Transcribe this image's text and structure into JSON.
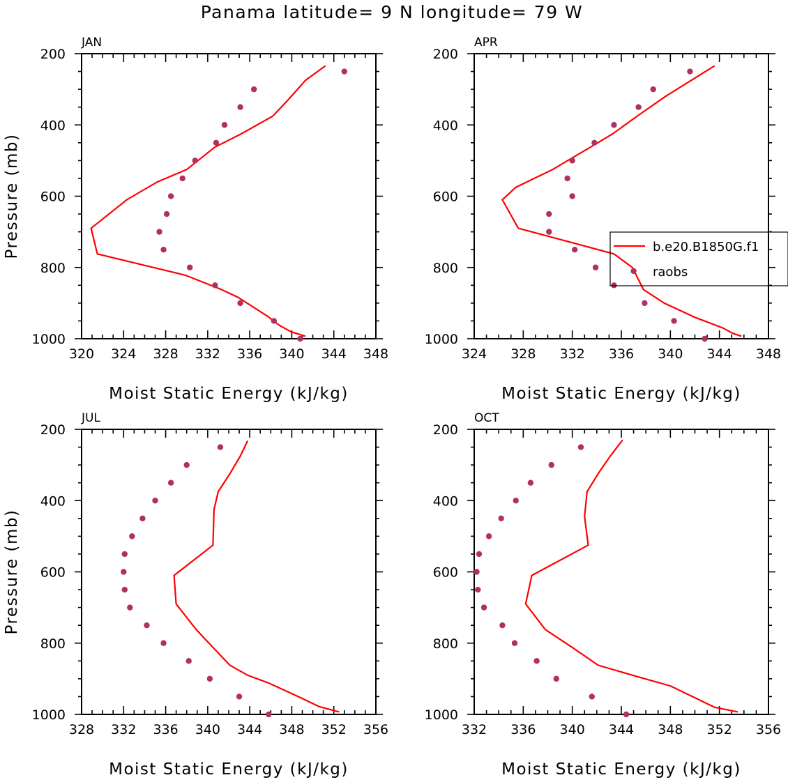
{
  "title": "Panama  latitude= 9 N longitude= 79 W",
  "colors": {
    "model": "#ff0000",
    "obs": "#b03060",
    "axis": "#000000"
  },
  "legend": {
    "model_label": "b.e20.B1850G.f1",
    "obs_label": "raobs",
    "panel": "APR"
  },
  "chart_data": [
    {
      "type": "line",
      "panel": "JAN",
      "xlabel": "Moist Static Energy (kJ/kg)",
      "ylabel": "Pressure (mb)",
      "xlim": [
        320,
        348
      ],
      "ylim": [
        200,
        1000
      ],
      "xticks": [
        320,
        324,
        328,
        332,
        336,
        340,
        344,
        348
      ],
      "yticks": [
        200,
        400,
        600,
        800,
        1000
      ],
      "series": [
        {
          "name": "b.e20.B1850G.f1",
          "style": "line",
          "points": [
            [
              343.2,
              234
            ],
            [
              341.3,
              275
            ],
            [
              339.8,
              325
            ],
            [
              338.2,
              375
            ],
            [
              335.2,
              425
            ],
            [
              332.7,
              462
            ],
            [
              330.0,
              525
            ],
            [
              327.2,
              560
            ],
            [
              324.3,
              610
            ],
            [
              320.9,
              690
            ],
            [
              321.5,
              762
            ],
            [
              329.9,
              822
            ],
            [
              333.3,
              862
            ],
            [
              334.9,
              884
            ],
            [
              337.7,
              937
            ],
            [
              338.8,
              962
            ],
            [
              339.9,
              980
            ],
            [
              341.3,
              993
            ]
          ]
        },
        {
          "name": "raobs",
          "style": "markers",
          "points": [
            [
              345.0,
              250
            ],
            [
              336.4,
              300
            ],
            [
              335.1,
              350
            ],
            [
              333.6,
              400
            ],
            [
              332.8,
              450
            ],
            [
              330.8,
              500
            ],
            [
              329.6,
              550
            ],
            [
              328.5,
              600
            ],
            [
              328.1,
              650
            ],
            [
              327.4,
              700
            ],
            [
              327.8,
              750
            ],
            [
              330.3,
              800
            ],
            [
              332.7,
              850
            ],
            [
              335.1,
              900
            ],
            [
              338.3,
              950
            ],
            [
              340.8,
              1000
            ]
          ]
        }
      ]
    },
    {
      "type": "line",
      "panel": "APR",
      "xlabel": "Moist Static Energy (kJ/kg)",
      "ylabel": "",
      "xlim": [
        324,
        348
      ],
      "ylim": [
        200,
        1000
      ],
      "xticks": [
        324,
        328,
        332,
        336,
        340,
        344,
        348
      ],
      "yticks": [
        200,
        400,
        600,
        800,
        1000
      ],
      "series": [
        {
          "name": "b.e20.B1850G.f1",
          "style": "line",
          "points": [
            [
              343.6,
              234
            ],
            [
              341.7,
              275
            ],
            [
              339.6,
              320
            ],
            [
              337.3,
              375
            ],
            [
              335.3,
              425
            ],
            [
              333.5,
              462
            ],
            [
              330.4,
              525
            ],
            [
              327.4,
              575
            ],
            [
              326.3,
              610
            ],
            [
              327.6,
              690
            ],
            [
              335.4,
              762
            ],
            [
              336.9,
              800
            ],
            [
              337.8,
              862
            ],
            [
              339.5,
              900
            ],
            [
              342.0,
              940
            ],
            [
              344.3,
              970
            ],
            [
              345.1,
              985
            ],
            [
              345.8,
              993
            ]
          ]
        },
        {
          "name": "raobs",
          "style": "markers",
          "points": [
            [
              341.6,
              250
            ],
            [
              338.6,
              300
            ],
            [
              337.4,
              350
            ],
            [
              335.4,
              400
            ],
            [
              333.8,
              450
            ],
            [
              332.0,
              500
            ],
            [
              331.6,
              550
            ],
            [
              332.0,
              600
            ],
            [
              330.1,
              650
            ],
            [
              330.1,
              700
            ],
            [
              332.2,
              750
            ],
            [
              333.9,
              800
            ],
            [
              337.0,
              810
            ],
            [
              335.4,
              850
            ],
            [
              337.9,
              900
            ],
            [
              340.3,
              950
            ],
            [
              342.8,
              1000
            ]
          ]
        }
      ]
    },
    {
      "type": "line",
      "panel": "JUL",
      "xlabel": "Moist Static Energy (kJ/kg)",
      "ylabel": "Pressure (mb)",
      "xlim": [
        328,
        356
      ],
      "ylim": [
        200,
        1000
      ],
      "xticks": [
        328,
        332,
        336,
        340,
        344,
        348,
        352,
        356
      ],
      "yticks": [
        200,
        400,
        600,
        800,
        1000
      ],
      "series": [
        {
          "name": "b.e20.B1850G.f1",
          "style": "line",
          "points": [
            [
              343.8,
              232
            ],
            [
              343.1,
              275
            ],
            [
              342.1,
              325
            ],
            [
              341.0,
              375
            ],
            [
              340.6,
              425
            ],
            [
              340.5,
              525
            ],
            [
              336.8,
              610
            ],
            [
              337.0,
              690
            ],
            [
              338.9,
              762
            ],
            [
              340.5,
              812
            ],
            [
              342.1,
              862
            ],
            [
              343.8,
              890
            ],
            [
              345.8,
              912
            ],
            [
              348.6,
              950
            ],
            [
              350.6,
              978
            ],
            [
              352.5,
              993
            ]
          ]
        },
        {
          "name": "raobs",
          "style": "markers",
          "points": [
            [
              341.2,
              250
            ],
            [
              338.0,
              300
            ],
            [
              336.5,
              350
            ],
            [
              335.0,
              400
            ],
            [
              333.8,
              450
            ],
            [
              332.8,
              500
            ],
            [
              332.1,
              550
            ],
            [
              332.0,
              600
            ],
            [
              332.1,
              650
            ],
            [
              332.6,
              700
            ],
            [
              334.2,
              750
            ],
            [
              335.8,
              800
            ],
            [
              338.2,
              850
            ],
            [
              340.2,
              900
            ],
            [
              343.0,
              950
            ],
            [
              345.8,
              1000
            ]
          ]
        }
      ]
    },
    {
      "type": "line",
      "panel": "OCT",
      "xlabel": "Moist Static Energy (kJ/kg)",
      "ylabel": "",
      "xlim": [
        332,
        356
      ],
      "ylim": [
        200,
        1000
      ],
      "xticks": [
        332,
        336,
        340,
        344,
        348,
        352,
        356
      ],
      "yticks": [
        200,
        400,
        600,
        800,
        1000
      ],
      "series": [
        {
          "name": "b.e20.B1850G.f1",
          "style": "line",
          "points": [
            [
              344.1,
              230
            ],
            [
              343.1,
              275
            ],
            [
              342.1,
              325
            ],
            [
              341.2,
              375
            ],
            [
              341.0,
              445
            ],
            [
              341.3,
              525
            ],
            [
              336.7,
              610
            ],
            [
              336.2,
              690
            ],
            [
              337.8,
              762
            ],
            [
              340.0,
              812
            ],
            [
              342.1,
              862
            ],
            [
              345.2,
              893
            ],
            [
              348.0,
              920
            ],
            [
              350.4,
              960
            ],
            [
              351.6,
              980
            ],
            [
              353.5,
              993
            ]
          ]
        },
        {
          "name": "raobs",
          "style": "markers",
          "points": [
            [
              340.7,
              250
            ],
            [
              338.3,
              300
            ],
            [
              336.6,
              350
            ],
            [
              335.4,
              400
            ],
            [
              334.2,
              450
            ],
            [
              333.2,
              500
            ],
            [
              332.4,
              550
            ],
            [
              332.2,
              600
            ],
            [
              332.3,
              650
            ],
            [
              332.8,
              700
            ],
            [
              334.3,
              750
            ],
            [
              335.3,
              800
            ],
            [
              337.1,
              850
            ],
            [
              338.7,
              900
            ],
            [
              341.6,
              950
            ],
            [
              344.4,
              1000
            ]
          ]
        }
      ]
    }
  ]
}
